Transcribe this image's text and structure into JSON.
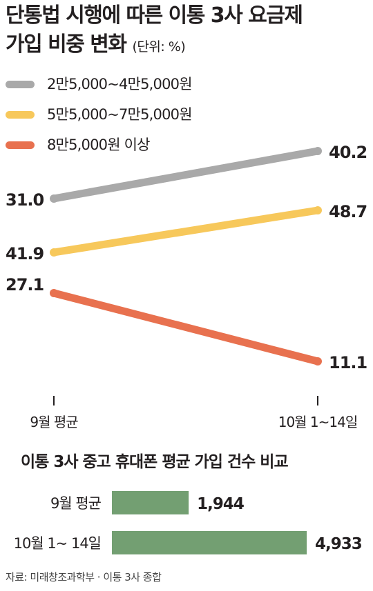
{
  "title": {
    "line1": "단통법 시행에 따른 이통 3사 요금제",
    "line2": "가입 비중 변화",
    "unit": "(단위: %)"
  },
  "chart_data": [
    {
      "type": "line",
      "x": [
        "9월 평균",
        "10월 1~14일"
      ],
      "series": [
        {
          "name": "2만5,000~4만5,000원",
          "values": [
            31.0,
            40.2
          ],
          "labels": [
            "31.0",
            "40.2"
          ],
          "color": "#a9a9a9"
        },
        {
          "name": "5만5,000~7만5,000원",
          "values": [
            41.9,
            48.7
          ],
          "labels": [
            "41.9",
            "48.7"
          ],
          "color": "#f7c85b"
        },
        {
          "name": "8만5,000원 이상",
          "values": [
            27.1,
            11.1
          ],
          "labels": [
            "27.1",
            "11.1"
          ],
          "color": "#e8714f"
        }
      ],
      "legend": "top-left",
      "grid": false
    },
    {
      "type": "bar",
      "title": "이통 3사 중고 휴대폰 평균 가입 건수 비교",
      "categories": [
        "9월 평균",
        "10월 1~ 14일"
      ],
      "values": [
        1944,
        4933
      ],
      "labels": [
        "1,944",
        "4,933"
      ],
      "color": "#739f72"
    }
  ],
  "source": "자료: 미래창조과학부 · 이통 3사 종합"
}
